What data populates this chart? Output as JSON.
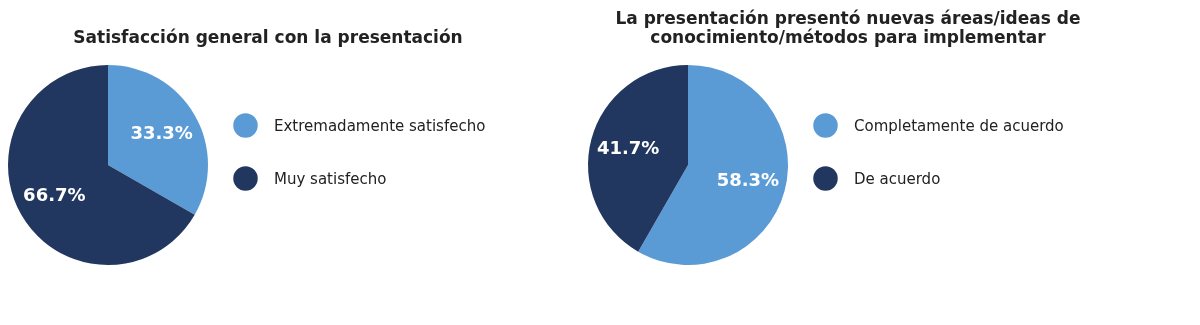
{
  "chart_data": [
    {
      "type": "pie",
      "title": "Satisfacción general con la presentación",
      "categories": [
        "Extremadamente satisfecho",
        "Muy satisfecho"
      ],
      "values": [
        33.3,
        66.7
      ],
      "colors": [
        "#5b9bd5",
        "#22375f"
      ],
      "value_labels": [
        "33.3%",
        "66.7%"
      ],
      "legend": "right"
    },
    {
      "type": "pie",
      "title": "La presentación presentó nuevas áreas/ideas de conocimiento/métodos para implementar",
      "categories": [
        "Completamente de acuerdo",
        "De acuerdo"
      ],
      "values": [
        58.3,
        41.7
      ],
      "colors": [
        "#5b9bd5",
        "#22375f"
      ],
      "value_labels": [
        "58.3%",
        "41.7%"
      ],
      "legend": "right"
    }
  ]
}
